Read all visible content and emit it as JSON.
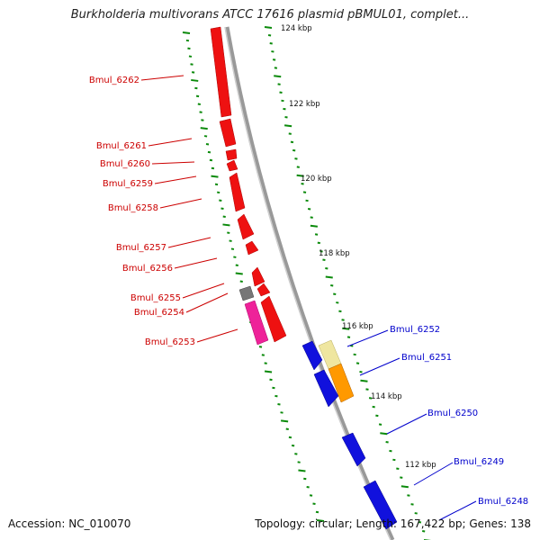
{
  "title": "Burkholderia multivorans ATCC 17616 plasmid pBMUL01, complet...",
  "accession": "Accession: NC_010070",
  "summary": "Topology: circular; Length: 167,422 bp; Genes: 138",
  "colors": {
    "backbone": "#8c8c8c",
    "tick": "#0b8a0b",
    "gene_forward_red": "#ee1111",
    "gene_pink": "#ee2299",
    "gene_grey": "#777777",
    "gene_blue": "#1111dd",
    "gene_orange": "#ff9900",
    "gene_paleyellow": "#efe6a0",
    "label_red": "#cc0000",
    "label_blue": "#0000cc"
  },
  "scale_labels": [
    "124 kbp",
    "122 kbp",
    "120 kbp",
    "118 kbp",
    "116 kbp",
    "114 kbp",
    "112 kbp"
  ],
  "gene_labels_red": [
    "Bmul_6262",
    "Bmul_6261",
    "Bmul_6260",
    "Bmul_6259",
    "Bmul_6258",
    "Bmul_6257",
    "Bmul_6256",
    "Bmul_6255",
    "Bmul_6254",
    "Bmul_6253"
  ],
  "gene_labels_blue": [
    "Bmul_6252",
    "Bmul_6251",
    "Bmul_6250",
    "Bmul_6249",
    "Bmul_6248"
  ]
}
